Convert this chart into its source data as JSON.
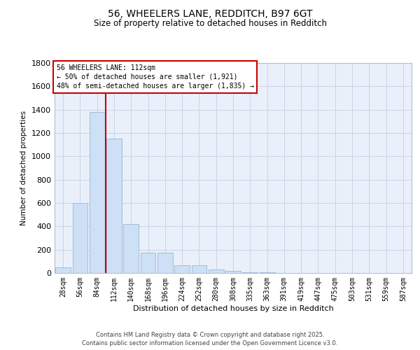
{
  "title_line1": "56, WHEELERS LANE, REDDITCH, B97 6GT",
  "title_line2": "Size of property relative to detached houses in Redditch",
  "xlabel": "Distribution of detached houses by size in Redditch",
  "ylabel": "Number of detached properties",
  "annotation_line1": "56 WHEELERS LANE: 112sqm",
  "annotation_line2": "← 50% of detached houses are smaller (1,921)",
  "annotation_line3": "48% of semi-detached houses are larger (1,835) →",
  "categories": [
    "28sqm",
    "56sqm",
    "84sqm",
    "112sqm",
    "140sqm",
    "168sqm",
    "196sqm",
    "224sqm",
    "252sqm",
    "280sqm",
    "308sqm",
    "335sqm",
    "363sqm",
    "391sqm",
    "419sqm",
    "447sqm",
    "475sqm",
    "503sqm",
    "531sqm",
    "559sqm",
    "587sqm"
  ],
  "values": [
    50,
    600,
    1380,
    1150,
    420,
    175,
    175,
    65,
    65,
    30,
    20,
    5,
    5,
    2,
    2,
    1,
    1,
    0,
    1,
    0,
    0
  ],
  "bar_color": "#cde0f5",
  "bar_edge_color": "#a0bcd8",
  "vline_color": "#cc0000",
  "annotation_box_color": "#cc0000",
  "grid_color": "#c8d4e8",
  "bg_color": "#eaf0fa",
  "ylim": [
    0,
    1800
  ],
  "yticks": [
    0,
    200,
    400,
    600,
    800,
    1000,
    1200,
    1400,
    1600,
    1800
  ],
  "footer_line1": "Contains HM Land Registry data © Crown copyright and database right 2025.",
  "footer_line2": "Contains public sector information licensed under the Open Government Licence v3.0."
}
